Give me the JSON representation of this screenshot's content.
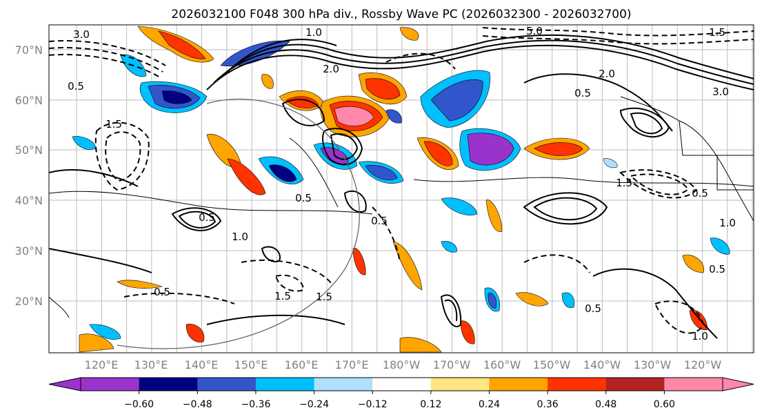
{
  "title": "2026032100 F048 300 hPa div., Rossby Wave PC (2026032300 - 2026032700)",
  "map": {
    "lat_ticks": [
      "70°N",
      "60°N",
      "50°N",
      "40°N",
      "30°N",
      "20°N"
    ],
    "lon_ticks": [
      "120°E",
      "130°E",
      "140°E",
      "150°E",
      "160°E",
      "170°E",
      "180°W",
      "170°W",
      "160°W",
      "150°W",
      "140°W",
      "130°W",
      "120°W"
    ],
    "contour_labels": [
      "3.0",
      "1.0",
      "2.0",
      "5.0",
      "1.5",
      "0.5",
      "3.0",
      "0.5",
      "2.0",
      "1.5",
      "0.5",
      "1.0",
      "1.5",
      "0.5",
      "0.5",
      "1.5",
      "0.5",
      "1.0",
      "0.5",
      "0.5",
      "1.5",
      "0.5",
      "1.0"
    ]
  },
  "colorbar": {
    "colors": [
      "#9933cc",
      "#000080",
      "#3355cc",
      "#00bfff",
      "#b0e0ff",
      "#ffffff",
      "#ffe680",
      "#ffa500",
      "#ff3300",
      "#b22222",
      "#ff88aa"
    ],
    "tick_labels": [
      "−0.60",
      "−0.48",
      "−0.36",
      "−0.24",
      "−0.12",
      "0.12",
      "0.24",
      "0.36",
      "0.48",
      "0.60"
    ]
  }
}
